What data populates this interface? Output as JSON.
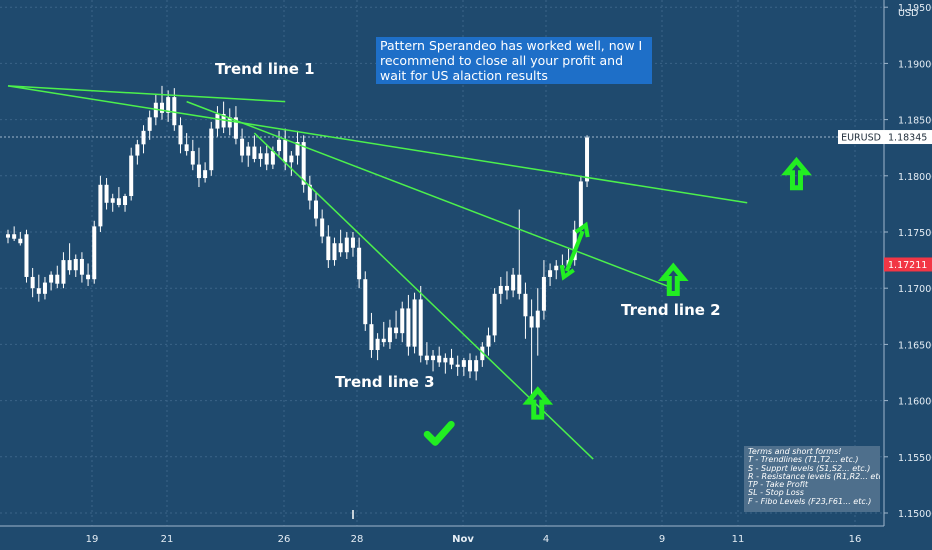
{
  "chart_data": {
    "type": "candlestick",
    "symbol": "EURUSD",
    "currency": "USD",
    "ylim": [
      1.1495,
      1.196
    ],
    "y_ticks": [
      "1.15000",
      "1.15500",
      "1.16000",
      "1.16500",
      "1.17000",
      "1.17500",
      "1.18000",
      "1.18500",
      "1.19000",
      "1.19500"
    ],
    "x_ticks": [
      "19",
      "21",
      "26",
      "28",
      "Nov",
      "4",
      "9",
      "11",
      "16"
    ],
    "last_price": "1.18345",
    "marked_price": "1.17211",
    "candles": [
      {
        "o": 1.1745,
        "h": 1.1752,
        "l": 1.174,
        "c": 1.1748
      },
      {
        "o": 1.1748,
        "h": 1.1755,
        "l": 1.1742,
        "c": 1.1744
      },
      {
        "o": 1.1744,
        "h": 1.175,
        "l": 1.1738,
        "c": 1.174
      },
      {
        "o": 1.1748,
        "h": 1.1752,
        "l": 1.1705,
        "c": 1.171
      },
      {
        "o": 1.171,
        "h": 1.1718,
        "l": 1.1692,
        "c": 1.17
      },
      {
        "o": 1.17,
        "h": 1.1712,
        "l": 1.1688,
        "c": 1.1695
      },
      {
        "o": 1.1695,
        "h": 1.171,
        "l": 1.169,
        "c": 1.1705
      },
      {
        "o": 1.1705,
        "h": 1.1715,
        "l": 1.1698,
        "c": 1.1712
      },
      {
        "o": 1.1712,
        "h": 1.172,
        "l": 1.17,
        "c": 1.1704
      },
      {
        "o": 1.1704,
        "h": 1.1732,
        "l": 1.17,
        "c": 1.1725
      },
      {
        "o": 1.1725,
        "h": 1.174,
        "l": 1.1712,
        "c": 1.1716
      },
      {
        "o": 1.1716,
        "h": 1.173,
        "l": 1.171,
        "c": 1.1726
      },
      {
        "o": 1.1726,
        "h": 1.1732,
        "l": 1.1705,
        "c": 1.1712
      },
      {
        "o": 1.1712,
        "h": 1.1722,
        "l": 1.1702,
        "c": 1.1708
      },
      {
        "o": 1.1708,
        "h": 1.176,
        "l": 1.1704,
        "c": 1.1755
      },
      {
        "o": 1.1755,
        "h": 1.18,
        "l": 1.175,
        "c": 1.1792
      },
      {
        "o": 1.1792,
        "h": 1.1798,
        "l": 1.177,
        "c": 1.1776
      },
      {
        "o": 1.1776,
        "h": 1.1784,
        "l": 1.1768,
        "c": 1.178
      },
      {
        "o": 1.178,
        "h": 1.179,
        "l": 1.1772,
        "c": 1.1774
      },
      {
        "o": 1.1774,
        "h": 1.1784,
        "l": 1.1768,
        "c": 1.1782
      },
      {
        "o": 1.1782,
        "h": 1.1825,
        "l": 1.1778,
        "c": 1.1818
      },
      {
        "o": 1.1818,
        "h": 1.1832,
        "l": 1.181,
        "c": 1.1828
      },
      {
        "o": 1.1828,
        "h": 1.1845,
        "l": 1.182,
        "c": 1.184
      },
      {
        "o": 1.184,
        "h": 1.1858,
        "l": 1.1832,
        "c": 1.1852
      },
      {
        "o": 1.1852,
        "h": 1.1872,
        "l": 1.1845,
        "c": 1.1865
      },
      {
        "o": 1.1865,
        "h": 1.188,
        "l": 1.185,
        "c": 1.1856
      },
      {
        "o": 1.1856,
        "h": 1.1876,
        "l": 1.1848,
        "c": 1.187
      },
      {
        "o": 1.187,
        "h": 1.1878,
        "l": 1.184,
        "c": 1.1845
      },
      {
        "o": 1.1845,
        "h": 1.1852,
        "l": 1.182,
        "c": 1.1828
      },
      {
        "o": 1.1828,
        "h": 1.1838,
        "l": 1.1818,
        "c": 1.1822
      },
      {
        "o": 1.1822,
        "h": 1.1832,
        "l": 1.1805,
        "c": 1.181
      },
      {
        "o": 1.181,
        "h": 1.1825,
        "l": 1.179,
        "c": 1.1798
      },
      {
        "o": 1.1798,
        "h": 1.1812,
        "l": 1.1794,
        "c": 1.1805
      },
      {
        "o": 1.1805,
        "h": 1.1848,
        "l": 1.18,
        "c": 1.1842
      },
      {
        "o": 1.1842,
        "h": 1.1862,
        "l": 1.1835,
        "c": 1.1855
      },
      {
        "o": 1.1855,
        "h": 1.1866,
        "l": 1.1838,
        "c": 1.1843
      },
      {
        "o": 1.1843,
        "h": 1.186,
        "l": 1.1836,
        "c": 1.1852
      },
      {
        "o": 1.1852,
        "h": 1.1862,
        "l": 1.1828,
        "c": 1.1833
      },
      {
        "o": 1.1833,
        "h": 1.1842,
        "l": 1.1812,
        "c": 1.1818
      },
      {
        "o": 1.1818,
        "h": 1.183,
        "l": 1.1808,
        "c": 1.1826
      },
      {
        "o": 1.1826,
        "h": 1.1836,
        "l": 1.1812,
        "c": 1.1815
      },
      {
        "o": 1.1815,
        "h": 1.1826,
        "l": 1.1808,
        "c": 1.182
      },
      {
        "o": 1.182,
        "h": 1.1828,
        "l": 1.1805,
        "c": 1.181
      },
      {
        "o": 1.181,
        "h": 1.1826,
        "l": 1.1806,
        "c": 1.1822
      },
      {
        "o": 1.1822,
        "h": 1.184,
        "l": 1.1818,
        "c": 1.1832
      },
      {
        "o": 1.1832,
        "h": 1.1842,
        "l": 1.1805,
        "c": 1.1812
      },
      {
        "o": 1.1812,
        "h": 1.1822,
        "l": 1.18,
        "c": 1.1818
      },
      {
        "o": 1.1818,
        "h": 1.184,
        "l": 1.181,
        "c": 1.183
      },
      {
        "o": 1.183,
        "h": 1.1836,
        "l": 1.1785,
        "c": 1.1792
      },
      {
        "o": 1.1792,
        "h": 1.18,
        "l": 1.177,
        "c": 1.1778
      },
      {
        "o": 1.1778,
        "h": 1.1786,
        "l": 1.1755,
        "c": 1.1762
      },
      {
        "o": 1.1762,
        "h": 1.177,
        "l": 1.174,
        "c": 1.1746
      },
      {
        "o": 1.1746,
        "h": 1.1756,
        "l": 1.1718,
        "c": 1.1725
      },
      {
        "o": 1.1725,
        "h": 1.1745,
        "l": 1.172,
        "c": 1.174
      },
      {
        "o": 1.174,
        "h": 1.1752,
        "l": 1.1728,
        "c": 1.1732
      },
      {
        "o": 1.1732,
        "h": 1.175,
        "l": 1.1726,
        "c": 1.1745
      },
      {
        "o": 1.1745,
        "h": 1.175,
        "l": 1.1728,
        "c": 1.1736
      },
      {
        "o": 1.1736,
        "h": 1.1745,
        "l": 1.17,
        "c": 1.1708
      },
      {
        "o": 1.1708,
        "h": 1.1715,
        "l": 1.1662,
        "c": 1.1668
      },
      {
        "o": 1.1668,
        "h": 1.1678,
        "l": 1.1638,
        "c": 1.1645
      },
      {
        "o": 1.1645,
        "h": 1.166,
        "l": 1.1636,
        "c": 1.1655
      },
      {
        "o": 1.1655,
        "h": 1.167,
        "l": 1.1648,
        "c": 1.1652
      },
      {
        "o": 1.1652,
        "h": 1.1672,
        "l": 1.1646,
        "c": 1.1665
      },
      {
        "o": 1.1665,
        "h": 1.168,
        "l": 1.1655,
        "c": 1.166
      },
      {
        "o": 1.166,
        "h": 1.1688,
        "l": 1.1652,
        "c": 1.1682
      },
      {
        "o": 1.1682,
        "h": 1.1694,
        "l": 1.164,
        "c": 1.1648
      },
      {
        "o": 1.1648,
        "h": 1.1696,
        "l": 1.1642,
        "c": 1.169
      },
      {
        "o": 1.169,
        "h": 1.1702,
        "l": 1.1634,
        "c": 1.164
      },
      {
        "o": 1.164,
        "h": 1.1652,
        "l": 1.1632,
        "c": 1.1636
      },
      {
        "o": 1.1636,
        "h": 1.1645,
        "l": 1.1626,
        "c": 1.164
      },
      {
        "o": 1.164,
        "h": 1.1648,
        "l": 1.163,
        "c": 1.1634
      },
      {
        "o": 1.1634,
        "h": 1.1642,
        "l": 1.1624,
        "c": 1.1638
      },
      {
        "o": 1.1638,
        "h": 1.1646,
        "l": 1.1628,
        "c": 1.1632
      },
      {
        "o": 1.1632,
        "h": 1.164,
        "l": 1.1622,
        "c": 1.163
      },
      {
        "o": 1.163,
        "h": 1.1638,
        "l": 1.1622,
        "c": 1.1636
      },
      {
        "o": 1.1636,
        "h": 1.1642,
        "l": 1.162,
        "c": 1.1626
      },
      {
        "o": 1.1626,
        "h": 1.164,
        "l": 1.1618,
        "c": 1.1636
      },
      {
        "o": 1.1636,
        "h": 1.1652,
        "l": 1.163,
        "c": 1.1648
      },
      {
        "o": 1.1648,
        "h": 1.1665,
        "l": 1.164,
        "c": 1.1658
      },
      {
        "o": 1.1658,
        "h": 1.17,
        "l": 1.1652,
        "c": 1.1695
      },
      {
        "o": 1.1695,
        "h": 1.171,
        "l": 1.1686,
        "c": 1.1702
      },
      {
        "o": 1.1702,
        "h": 1.1715,
        "l": 1.169,
        "c": 1.1698
      },
      {
        "o": 1.1698,
        "h": 1.1718,
        "l": 1.1692,
        "c": 1.1712
      },
      {
        "o": 1.1712,
        "h": 1.177,
        "l": 1.169,
        "c": 1.1695
      },
      {
        "o": 1.1695,
        "h": 1.1705,
        "l": 1.1655,
        "c": 1.1675
      },
      {
        "o": 1.1675,
        "h": 1.169,
        "l": 1.1605,
        "c": 1.1665
      },
      {
        "o": 1.1665,
        "h": 1.17,
        "l": 1.164,
        "c": 1.168
      },
      {
        "o": 1.168,
        "h": 1.1725,
        "l": 1.1672,
        "c": 1.171
      },
      {
        "o": 1.171,
        "h": 1.1722,
        "l": 1.1702,
        "c": 1.1716
      },
      {
        "o": 1.1716,
        "h": 1.1725,
        "l": 1.1708,
        "c": 1.172
      },
      {
        "o": 1.172,
        "h": 1.173,
        "l": 1.1712,
        "c": 1.1718
      },
      {
        "o": 1.1718,
        "h": 1.1735,
        "l": 1.1714,
        "c": 1.1725
      },
      {
        "o": 1.1725,
        "h": 1.176,
        "l": 1.172,
        "c": 1.1752
      },
      {
        "o": 1.1752,
        "h": 1.18,
        "l": 1.1748,
        "c": 1.1795
      },
      {
        "o": 1.1795,
        "h": 1.1836,
        "l": 1.179,
        "c": 1.1834
      }
    ],
    "trendlines": [
      {
        "label": "Trend line 1",
        "from": [
          0,
          1.188
        ],
        "to": [
          120,
          1.1776
        ]
      },
      {
        "label": "Trend line 2",
        "from": [
          29,
          1.1866
        ],
        "to": [
          107,
          1.1702
        ]
      },
      {
        "label": "Trend line 3",
        "from": [
          40,
          1.1838
        ],
        "to": [
          95,
          1.1548
        ]
      },
      {
        "label": "",
        "from": [
          0,
          1.188
        ],
        "to": [
          45,
          1.1866
        ]
      }
    ],
    "arrows": [
      {
        "kind": "up",
        "at": [
          128,
          1.18
        ]
      },
      {
        "kind": "up",
        "at": [
          108,
          1.1706
        ]
      },
      {
        "kind": "up",
        "at": [
          86,
          1.1596
        ]
      },
      {
        "kind": "double",
        "at": [
          92,
          1.1733
        ]
      },
      {
        "kind": "check",
        "at": [
          70,
          1.157
        ]
      }
    ]
  },
  "annotations": {
    "trend_line_1": "Trend line 1",
    "trend_line_2": "Trend line 2",
    "trend_line_3": "Trend line 3",
    "note": "Pattern Sperandeo has worked well, now I recommend to close all your profit and wait for US alaction results"
  },
  "terms_box": [
    "Terms and short forms!",
    "T - Trendlines (T1,T2... etc.)",
    "S - Supprt levels (S1,S2... etc.)",
    "R - Resistance levels (R1,R2... etc.)",
    "TP - Take Profit",
    "SL - Stop Loss",
    "F - Fibo Levels  (F23,F61... etc.)"
  ],
  "colors": {
    "background": "#1f4a6e",
    "grid": "#3b6488",
    "candle": "#ffffff",
    "trendline": "#4cf04c",
    "arrow": "#22ee22",
    "note_box": "#1e6fc8",
    "terms_box": "#4e6f8c",
    "last_price_tag": "#ffffff",
    "marked_price_tag": "#f23645"
  }
}
